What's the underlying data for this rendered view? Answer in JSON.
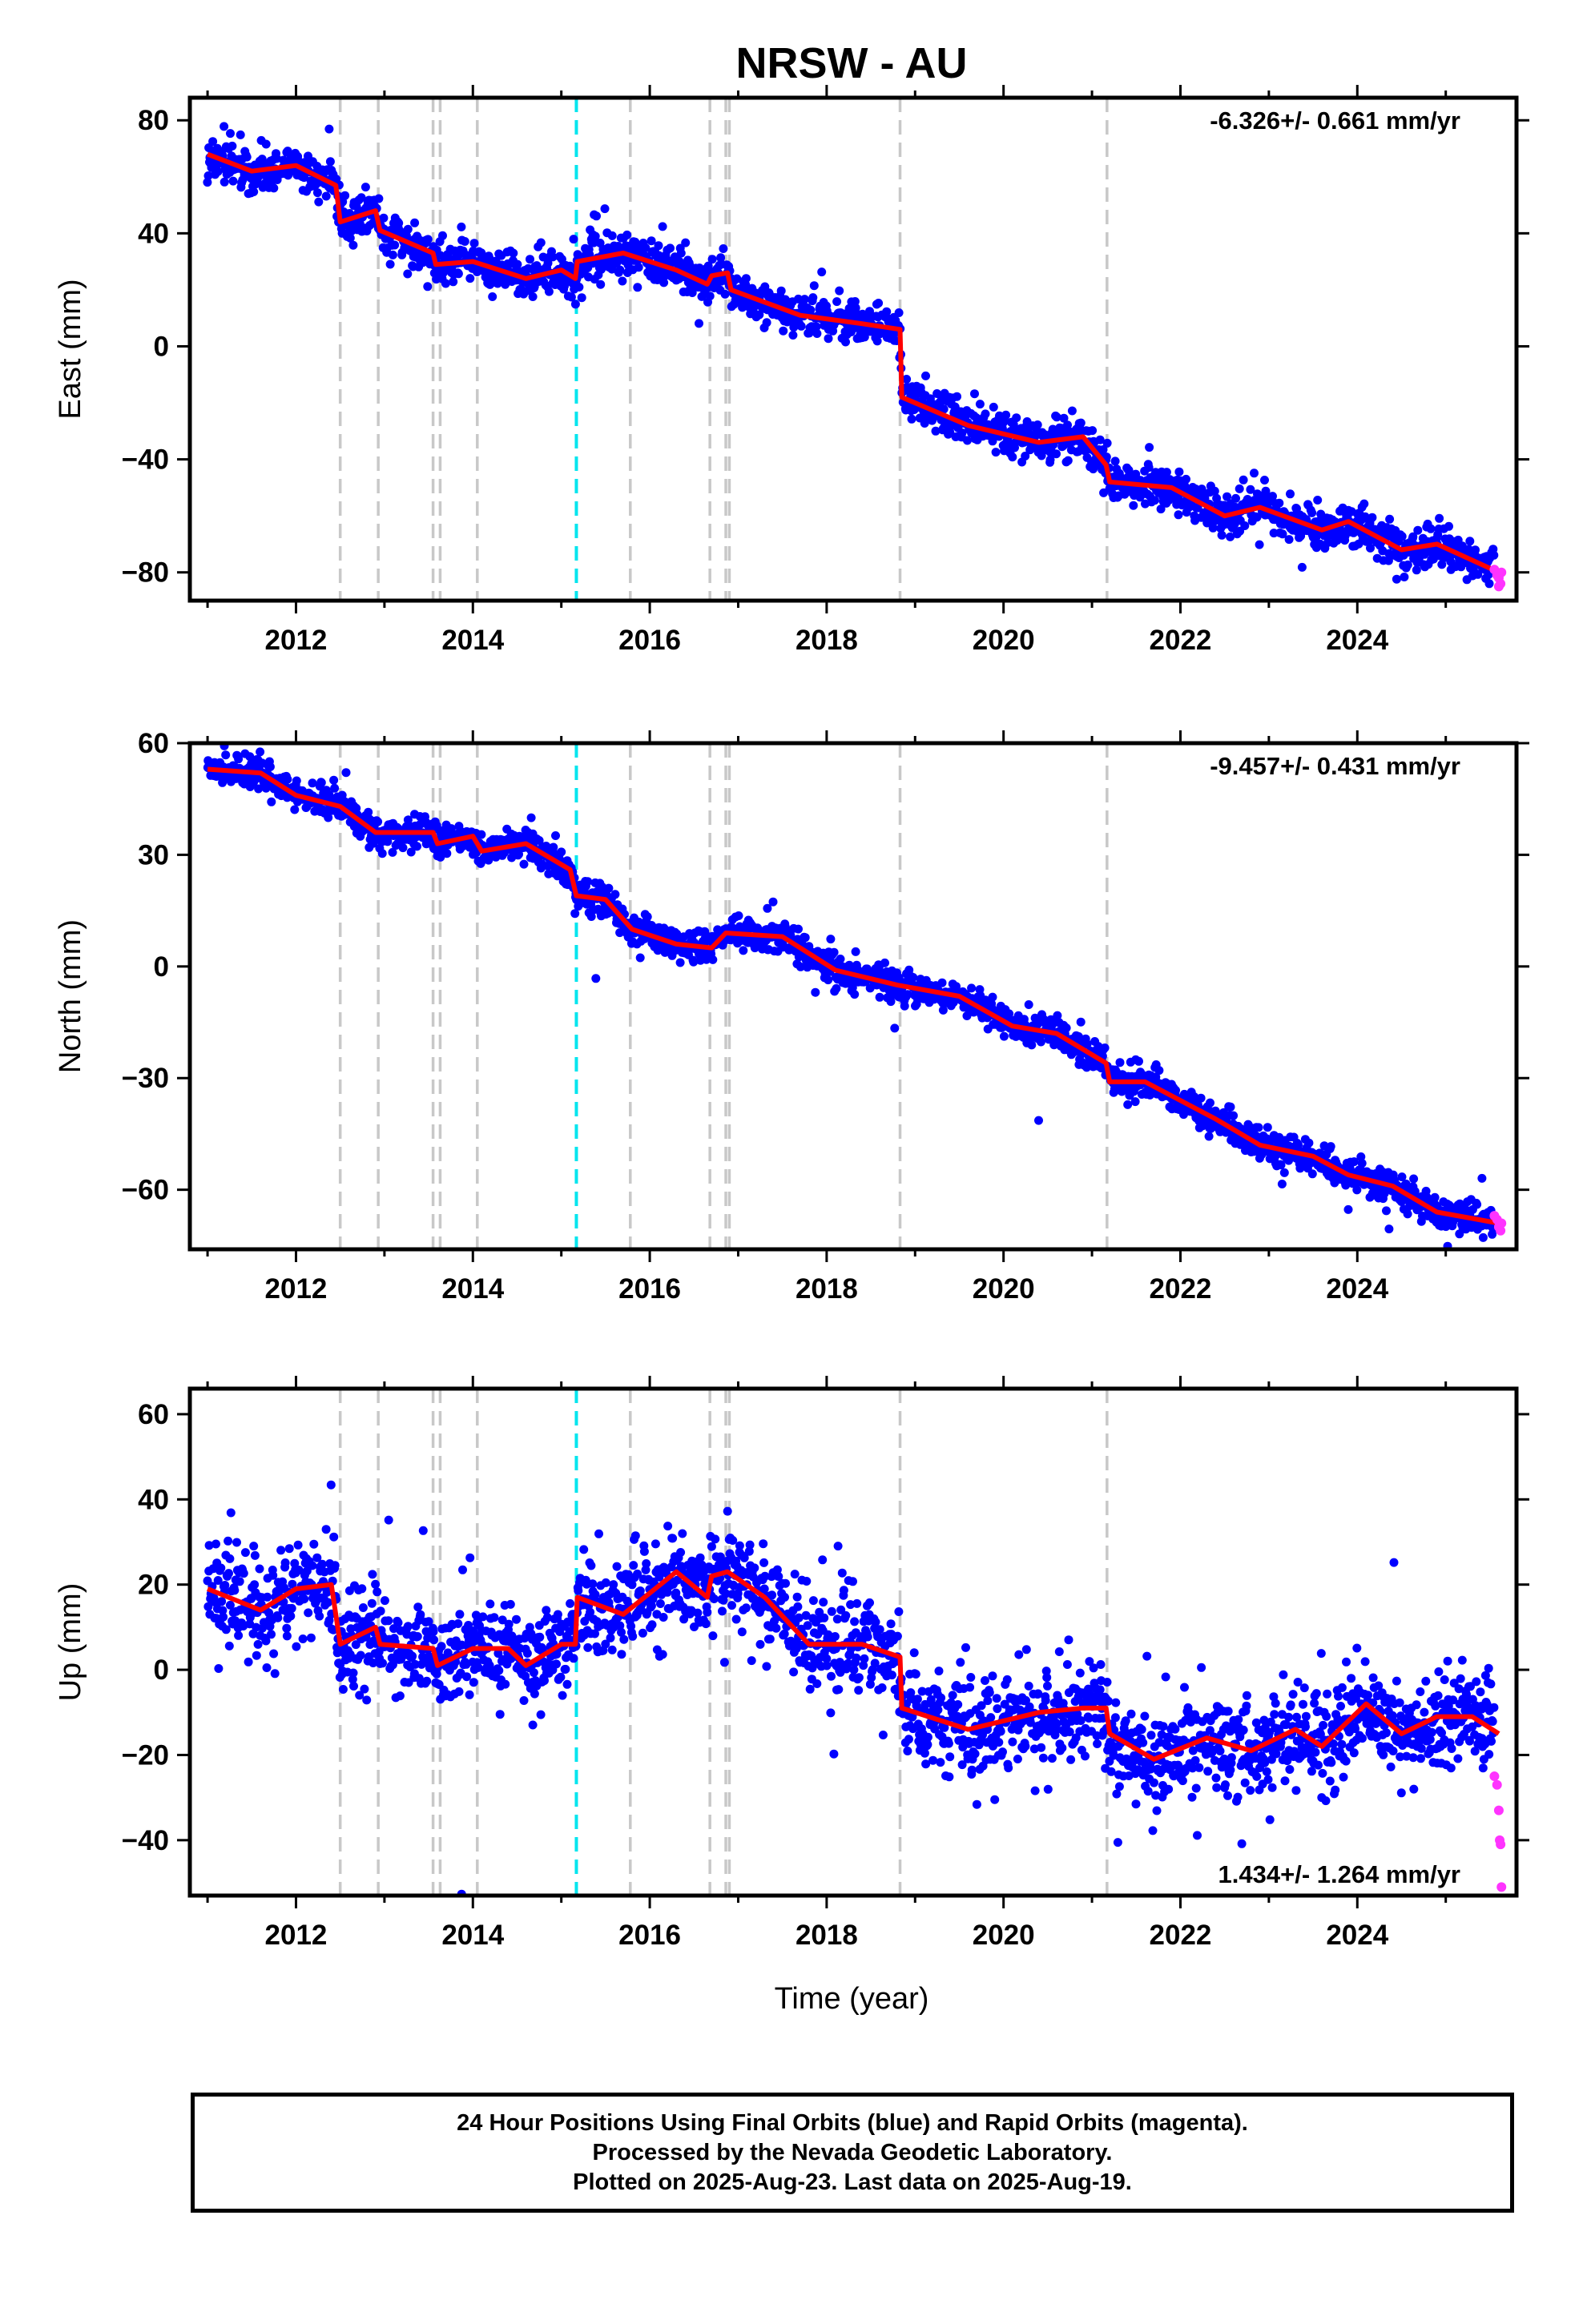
{
  "title": "NRSW - AU",
  "xlabel": "Time (year)",
  "caption": [
    "24 Hour Positions Using Final Orbits (blue) and Rapid Orbits (magenta).",
    "Processed by the Nevada Geodetic Laboratory.",
    "Plotted on 2025-Aug-23. Last data on 2025-Aug-19."
  ],
  "colors": {
    "final_orbits": "#0000ff",
    "rapid_orbits": "#ff33ff",
    "model": "#ff0000",
    "event_lines": "#c8c8c8",
    "highlight_event": "#00e5ee"
  },
  "chart_data": [
    {
      "type": "scatter",
      "component": "east",
      "ylabel": "East (mm)",
      "rate_label": "-6.326+/- 0.661 mm/yr",
      "xlim": [
        2010.8,
        2025.8
      ],
      "ylim": [
        -90,
        88
      ],
      "yticks": [
        -80,
        -40,
        0,
        40,
        80
      ],
      "xticks": [
        2012,
        2014,
        2016,
        2018,
        2020,
        2022,
        2024
      ],
      "event_lines": [
        2012.5,
        2012.93,
        2013.55,
        2013.63,
        2014.05,
        2015.78,
        2016.68,
        2016.86,
        2016.9,
        2018.83,
        2021.17
      ],
      "highlight_event_line": 2015.17,
      "model_line": [
        [
          2011.0,
          68
        ],
        [
          2011.5,
          62
        ],
        [
          2012.0,
          64
        ],
        [
          2012.45,
          57
        ],
        [
          2012.5,
          44
        ],
        [
          2012.9,
          48
        ],
        [
          2012.95,
          41
        ],
        [
          2013.55,
          33
        ],
        [
          2013.58,
          29
        ],
        [
          2014.0,
          30
        ],
        [
          2014.6,
          24
        ],
        [
          2015.0,
          27
        ],
        [
          2015.16,
          24
        ],
        [
          2015.18,
          30
        ],
        [
          2015.7,
          33
        ],
        [
          2016.3,
          27
        ],
        [
          2016.65,
          22
        ],
        [
          2016.7,
          25
        ],
        [
          2016.88,
          26
        ],
        [
          2016.92,
          20
        ],
        [
          2017.7,
          11
        ],
        [
          2018.4,
          8
        ],
        [
          2018.83,
          6
        ],
        [
          2018.85,
          -18
        ],
        [
          2019.6,
          -28
        ],
        [
          2020.4,
          -34
        ],
        [
          2020.9,
          -32
        ],
        [
          2021.16,
          -42
        ],
        [
          2021.2,
          -48
        ],
        [
          2021.9,
          -50
        ],
        [
          2022.5,
          -60
        ],
        [
          2022.9,
          -57
        ],
        [
          2023.6,
          -65
        ],
        [
          2023.9,
          -62
        ],
        [
          2024.5,
          -72
        ],
        [
          2024.9,
          -70
        ],
        [
          2025.6,
          -80
        ]
      ],
      "rapid_points": [
        [
          2025.55,
          -79
        ],
        [
          2025.58,
          -81
        ],
        [
          2025.6,
          -82
        ],
        [
          2025.62,
          -84
        ],
        [
          2025.63,
          -80
        ],
        [
          2025.6,
          -85
        ]
      ]
    },
    {
      "type": "scatter",
      "component": "north",
      "ylabel": "North (mm)",
      "rate_label": "-9.457+/- 0.431 mm/yr",
      "xlim": [
        2010.8,
        2025.8
      ],
      "ylim": [
        -76,
        60
      ],
      "yticks": [
        -60,
        -30,
        0,
        30,
        60
      ],
      "xticks": [
        2012,
        2014,
        2016,
        2018,
        2020,
        2022,
        2024
      ],
      "event_lines": [
        2012.5,
        2012.93,
        2013.55,
        2013.63,
        2014.05,
        2015.78,
        2016.68,
        2016.86,
        2016.9,
        2018.83,
        2021.17
      ],
      "highlight_event_line": 2015.17,
      "model_line": [
        [
          2011.0,
          53
        ],
        [
          2011.6,
          52
        ],
        [
          2012.0,
          46
        ],
        [
          2012.5,
          43
        ],
        [
          2012.9,
          36
        ],
        [
          2013.55,
          36
        ],
        [
          2013.6,
          33
        ],
        [
          2014.0,
          35
        ],
        [
          2014.1,
          31
        ],
        [
          2014.6,
          33
        ],
        [
          2015.1,
          26
        ],
        [
          2015.17,
          19
        ],
        [
          2015.5,
          18
        ],
        [
          2015.8,
          10
        ],
        [
          2016.3,
          6
        ],
        [
          2016.7,
          5
        ],
        [
          2016.86,
          9
        ],
        [
          2017.5,
          8
        ],
        [
          2018.1,
          -1
        ],
        [
          2018.8,
          -5
        ],
        [
          2019.5,
          -8
        ],
        [
          2020.1,
          -16
        ],
        [
          2020.6,
          -18
        ],
        [
          2021.16,
          -26
        ],
        [
          2021.2,
          -31
        ],
        [
          2021.6,
          -31
        ],
        [
          2022.4,
          -41
        ],
        [
          2022.9,
          -48
        ],
        [
          2023.5,
          -51
        ],
        [
          2023.9,
          -56
        ],
        [
          2024.4,
          -59
        ],
        [
          2024.9,
          -66
        ],
        [
          2025.6,
          -69
        ]
      ],
      "rapid_points": [
        [
          2025.55,
          -67
        ],
        [
          2025.58,
          -68
        ],
        [
          2025.6,
          -70
        ],
        [
          2025.62,
          -71
        ],
        [
          2025.63,
          -69
        ]
      ]
    },
    {
      "type": "scatter",
      "component": "up",
      "ylabel": "Up (mm)",
      "rate_label": "1.434+/- 1.264 mm/yr",
      "xlim": [
        2010.8,
        2025.8
      ],
      "ylim": [
        -53,
        66
      ],
      "yticks": [
        -40,
        -20,
        0,
        20,
        40,
        60
      ],
      "xticks": [
        2012,
        2014,
        2016,
        2018,
        2020,
        2022,
        2024
      ],
      "event_lines": [
        2012.5,
        2012.93,
        2013.55,
        2013.63,
        2014.05,
        2015.78,
        2016.68,
        2016.86,
        2016.9,
        2018.83,
        2021.17
      ],
      "highlight_event_line": 2015.17,
      "model_line": [
        [
          2011.0,
          19
        ],
        [
          2011.6,
          14
        ],
        [
          2012.0,
          19
        ],
        [
          2012.4,
          20
        ],
        [
          2012.5,
          6
        ],
        [
          2012.9,
          10
        ],
        [
          2012.95,
          6
        ],
        [
          2013.55,
          5
        ],
        [
          2013.6,
          1
        ],
        [
          2014.0,
          5
        ],
        [
          2014.4,
          5
        ],
        [
          2014.6,
          1
        ],
        [
          2015.0,
          6
        ],
        [
          2015.16,
          6
        ],
        [
          2015.18,
          17
        ],
        [
          2015.7,
          13
        ],
        [
          2016.3,
          23
        ],
        [
          2016.65,
          17
        ],
        [
          2016.7,
          22
        ],
        [
          2016.88,
          23
        ],
        [
          2017.3,
          17
        ],
        [
          2017.8,
          6
        ],
        [
          2018.4,
          6
        ],
        [
          2018.83,
          3
        ],
        [
          2018.85,
          -9
        ],
        [
          2019.6,
          -14
        ],
        [
          2020.4,
          -10
        ],
        [
          2020.9,
          -9
        ],
        [
          2021.16,
          -9
        ],
        [
          2021.2,
          -15
        ],
        [
          2021.7,
          -21
        ],
        [
          2022.3,
          -16
        ],
        [
          2022.8,
          -19
        ],
        [
          2023.3,
          -14
        ],
        [
          2023.6,
          -18
        ],
        [
          2024.1,
          -8
        ],
        [
          2024.5,
          -15
        ],
        [
          2024.9,
          -11
        ],
        [
          2025.3,
          -11
        ],
        [
          2025.6,
          -15
        ]
      ],
      "rapid_points": [
        [
          2025.55,
          -25
        ],
        [
          2025.58,
          -27
        ],
        [
          2025.6,
          -33
        ],
        [
          2025.61,
          -40
        ],
        [
          2025.62,
          -41
        ],
        [
          2025.63,
          -51
        ]
      ]
    }
  ]
}
